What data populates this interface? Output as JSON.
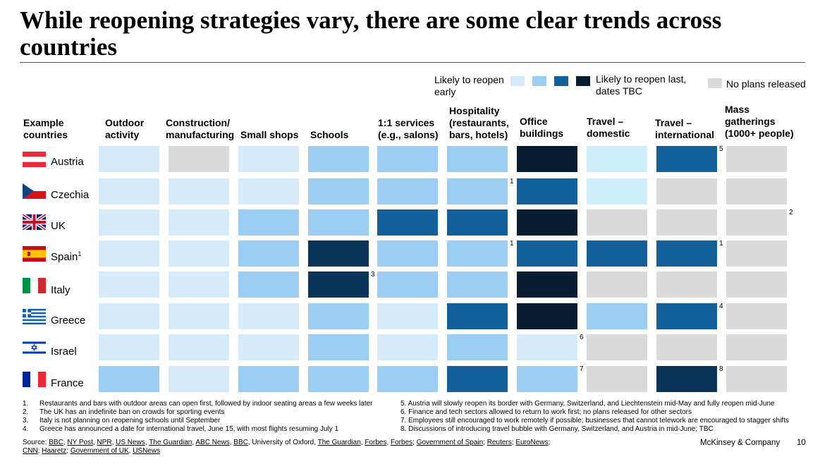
{
  "title": "While reopening strategies vary, there are some clear trends across countries",
  "legend": {
    "early_label": "Likely to reopen early",
    "last_label": "Likely to reopen last, dates TBC",
    "none_label": "No plans released",
    "scale_colors": [
      "#d6ebf9",
      "#9ccdf2",
      "#14609a",
      "#071c30"
    ],
    "none_color": "#dadada"
  },
  "colors": {
    "light": "#d6ebf9",
    "mid": "#9ccdf2",
    "cyan": "#cdeefb",
    "dark": "#14609a",
    "darker": "#0b3558",
    "darkest": "#071c30",
    "gray": "#dadada"
  },
  "headers": [
    "Example countries",
    "Outdoor activity",
    "Construction/ manufacturing",
    "Small shops",
    "Schools",
    "1:1 services (e.g., salons)",
    "Hospitality (restaurants, bars, hotels)",
    "Office buildings",
    "Travel – domestic",
    "Travel – international",
    "Mass gatherings (1000+ people)"
  ],
  "chart_data": {
    "type": "heatmap",
    "title": "While reopening strategies vary, there are some clear trends across countries",
    "columns": [
      "Outdoor activity",
      "Construction/ manufacturing",
      "Small shops",
      "Schools",
      "1:1 services (e.g., salons)",
      "Hospitality (restaurants, bars, hotels)",
      "Office buildings",
      "Travel – domestic",
      "Travel – international",
      "Mass gatherings (1000+ people)"
    ],
    "scale": [
      "Likely to reopen early",
      "",
      "",
      "Likely to reopen last, dates TBC",
      "No plans released"
    ],
    "rows": [
      {
        "country": "Austria",
        "sup": "",
        "cells": [
          "light",
          "gray",
          "light",
          "mid",
          "mid",
          "mid",
          "darkest",
          "cyan",
          "dark",
          "gray"
        ],
        "notes": [
          "",
          "",
          "",
          "",
          "",
          "",
          "",
          "",
          "5",
          ""
        ]
      },
      {
        "country": "Czechia",
        "sup": "",
        "cells": [
          "light",
          "light",
          "light",
          "mid",
          "mid",
          "mid",
          "dark",
          "cyan",
          "gray",
          "gray"
        ],
        "notes": [
          "",
          "",
          "",
          "",
          "",
          "1",
          "",
          "",
          "",
          ""
        ]
      },
      {
        "country": "UK",
        "sup": "",
        "cells": [
          "light",
          "light",
          "mid",
          "mid",
          "dark",
          "dark",
          "darkest",
          "gray",
          "gray",
          "gray"
        ],
        "notes": [
          "",
          "",
          "",
          "",
          "",
          "",
          "",
          "",
          "",
          "2"
        ]
      },
      {
        "country": "Spain",
        "sup": "1",
        "cells": [
          "light",
          "light",
          "mid",
          "darker",
          "mid",
          "mid",
          "dark",
          "dark",
          "dark",
          "gray"
        ],
        "notes": [
          "",
          "",
          "",
          "",
          "",
          "1",
          "",
          "",
          "1",
          ""
        ]
      },
      {
        "country": "Italy",
        "sup": "",
        "cells": [
          "light",
          "light",
          "mid",
          "darker",
          "mid",
          "mid",
          "darkest",
          "gray",
          "gray",
          "gray"
        ],
        "notes": [
          "",
          "",
          "",
          "3",
          "",
          "",
          "",
          "",
          "",
          ""
        ]
      },
      {
        "country": "Greece",
        "sup": "",
        "cells": [
          "light",
          "light",
          "light",
          "mid",
          "light",
          "dark",
          "darkest",
          "mid",
          "dark",
          "gray"
        ],
        "notes": [
          "",
          "",
          "",
          "",
          "",
          "",
          "",
          "",
          "4",
          ""
        ]
      },
      {
        "country": "Israel",
        "sup": "",
        "cells": [
          "light",
          "light",
          "light",
          "mid",
          "light",
          "mid",
          "light",
          "gray",
          "gray",
          "gray"
        ],
        "notes": [
          "",
          "",
          "",
          "",
          "",
          "",
          "6",
          "",
          "",
          ""
        ]
      },
      {
        "country": "France",
        "sup": "",
        "cells": [
          "mid",
          "light",
          "mid",
          "mid",
          "mid",
          "dark",
          "mid",
          "gray",
          "darker",
          "gray"
        ],
        "notes": [
          "",
          "",
          "",
          "",
          "",
          "",
          "7",
          "",
          "8",
          ""
        ]
      }
    ]
  },
  "footnotes_left": [
    {
      "n": "1.",
      "text": "Restaurants and bars with outdoor areas can open first, followed by indoor seating areas a few weeks later"
    },
    {
      "n": "2.",
      "text": "The UK has an indefinite ban on crowds for sporting events"
    },
    {
      "n": "3.",
      "text": "Italy is not planning on reopening schools until September"
    },
    {
      "n": "4.",
      "text": "Greece has announced a date for international travel, June 15, with most flights resuming July 1"
    }
  ],
  "footnotes_right": [
    "5. Austria will slowly reopen its border with Germany, Switzerland, and Liechtenstein mid-May and fully reopen mid-June",
    "6. Finance and tech sectors allowed to return to work first; no plans released for other sectors",
    "7. Employees still encouraged to work remotely if possible; businesses that cannot telework are encouraged to stagger shifts",
    "8. Discussions of introducing travel bubble with Germany, Switzerland, and Austria in mid-June; TBC"
  ],
  "source": {
    "label": "Source:",
    "items": [
      {
        "t": "BBC",
        "u": true
      },
      {
        "t": ", ",
        "u": false
      },
      {
        "t": "NY Post",
        "u": true
      },
      {
        "t": ", ",
        "u": false
      },
      {
        "t": "NPR",
        "u": true
      },
      {
        "t": ", ",
        "u": false
      },
      {
        "t": "US News",
        "u": true
      },
      {
        "t": ", ",
        "u": false
      },
      {
        "t": "The Guardian",
        "u": true
      },
      {
        "t": ", ",
        "u": false
      },
      {
        "t": "ABC News",
        "u": true
      },
      {
        "t": ", ",
        "u": false
      },
      {
        "t": "BBC",
        "u": true
      },
      {
        "t": ", University of Oxford, ",
        "u": false
      },
      {
        "t": "The Guardian",
        "u": true
      },
      {
        "t": ", ",
        "u": false
      },
      {
        "t": "Forbes",
        "u": true
      },
      {
        "t": ", ",
        "u": false
      },
      {
        "t": "Forbes",
        "u": true
      },
      {
        "t": "; ",
        "u": false
      },
      {
        "t": "Government of Spain",
        "u": true
      },
      {
        "t": "; ",
        "u": false
      },
      {
        "t": "Reuters",
        "u": true
      },
      {
        "t": "; ",
        "u": false
      },
      {
        "t": "EuroNews",
        "u": true
      },
      {
        "t": "; ",
        "u": false
      },
      {
        "t": "CNN",
        "u": true
      },
      {
        "t": "; ",
        "u": false
      },
      {
        "t": "Haaretz",
        "u": true
      },
      {
        "t": "; ",
        "u": false
      },
      {
        "t": "Government of UK",
        "u": true
      },
      {
        "t": ", ",
        "u": false
      },
      {
        "t": "USNews",
        "u": true
      }
    ]
  },
  "brand": "McKinsey & Company",
  "page_number": "10"
}
